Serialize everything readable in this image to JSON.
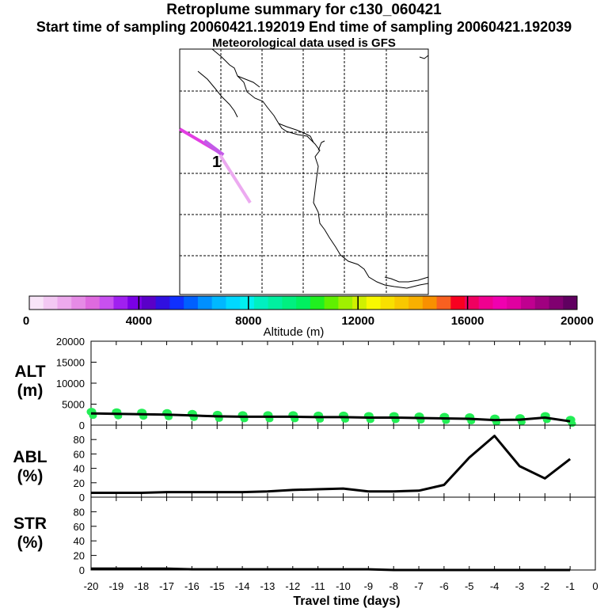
{
  "header": {
    "title": "Retroplume summary for c130_060421",
    "sampling": "Start time of sampling 20060421.192019     End time of sampling 20060421.192039",
    "met": "Meteorological data used is GFS"
  },
  "map": {
    "release_marker": "1",
    "plume_colors": [
      "#e23ee2",
      "#c35ae8",
      "#ecaaf0"
    ]
  },
  "colorbar": {
    "label": "Altitude (m)",
    "ticks": [
      "0",
      "4000",
      "8000",
      "12000",
      "16000",
      "20000"
    ],
    "colors": [
      "#f8e4f8",
      "#f3c8f3",
      "#edaaed",
      "#e68be6",
      "#df6adf",
      "#c850f0",
      "#a020f0",
      "#7a00e6",
      "#5a00c8",
      "#3010e0",
      "#1030ff",
      "#0060ff",
      "#0090ff",
      "#00b8ff",
      "#00d8ff",
      "#00f0f0",
      "#00f0c0",
      "#00f0a0",
      "#00f080",
      "#00f060",
      "#20f020",
      "#60f000",
      "#a0f000",
      "#d0f000",
      "#f8f800",
      "#f8e000",
      "#f8c800",
      "#f8b000",
      "#f89000",
      "#f86020",
      "#f80020",
      "#f00060",
      "#f00090",
      "#f000b0",
      "#e000a0",
      "#c00090",
      "#a00080",
      "#800070",
      "#600060"
    ]
  },
  "chart_data": [
    {
      "type": "line",
      "name": "ALT",
      "ylabel": "ALT (m)",
      "ylim": [
        0,
        20000
      ],
      "yticks": [
        "0",
        "5000",
        "10000",
        "15000",
        "20000"
      ],
      "x": [
        -20,
        -19,
        -18,
        -17,
        -16,
        -15,
        -14,
        -13,
        -12,
        -11,
        -10,
        -9,
        -8,
        -7,
        -6,
        -5,
        -4,
        -3,
        -2,
        -1
      ],
      "values": [
        2800,
        2700,
        2600,
        2500,
        2300,
        2100,
        2000,
        2000,
        2000,
        1900,
        1900,
        1800,
        1800,
        1700,
        1600,
        1500,
        1200,
        1300,
        1800,
        900
      ],
      "scatter_color": "#22ee55"
    },
    {
      "type": "line",
      "name": "ABL",
      "ylabel": "ABL (%)",
      "ylim": [
        0,
        100
      ],
      "yticks": [
        "0",
        "20",
        "40",
        "60",
        "80"
      ],
      "x": [
        -20,
        -19,
        -18,
        -17,
        -16,
        -15,
        -14,
        -13,
        -12,
        -11,
        -10,
        -9,
        -8,
        -7,
        -6,
        -5,
        -4,
        -3,
        -2,
        -1
      ],
      "values": [
        6,
        6,
        6,
        7,
        7,
        7,
        7,
        8,
        10,
        11,
        12,
        8,
        8,
        9,
        17,
        55,
        85,
        43,
        26,
        53
      ]
    },
    {
      "type": "line",
      "name": "STR",
      "ylabel": "STR (%)",
      "ylim": [
        0,
        100
      ],
      "yticks": [
        "0",
        "20",
        "40",
        "60",
        "80"
      ],
      "x": [
        -20,
        -19,
        -18,
        -17,
        -16,
        -15,
        -14,
        -13,
        -12,
        -11,
        -10,
        -9,
        -8,
        -7,
        -6,
        -5,
        -4,
        -3,
        -2,
        -1
      ],
      "values": [
        2,
        2,
        2,
        2,
        1,
        1,
        1,
        1,
        1,
        1,
        1,
        1,
        0,
        0,
        0,
        0,
        0,
        0,
        0,
        0
      ]
    }
  ],
  "xaxis": {
    "label": "Travel time (days)",
    "ticks": [
      "-20",
      "-19",
      "-18",
      "-17",
      "-16",
      "-15",
      "-14",
      "-13",
      "-12",
      "-11",
      "-10",
      "-9",
      "-8",
      "-7",
      "-6",
      "-5",
      "-4",
      "-3",
      "-2",
      "-1",
      "0"
    ]
  }
}
